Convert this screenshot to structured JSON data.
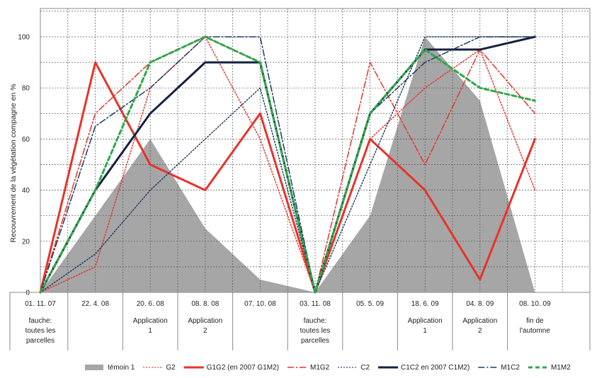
{
  "chart_data": {
    "type": "line",
    "title": "",
    "ylabel": "Recouvrement de la végétation compagne en %",
    "ylim": [
      0,
      100
    ],
    "yticks": [
      0,
      20,
      40,
      60,
      80,
      100
    ],
    "grid": true,
    "legend_position": "bottom",
    "categories": [
      "01. 11. 07",
      "22. 4. 08",
      "20. 6. 08",
      "08. 8. 08",
      "07. 10. 08",
      "03. 11. 08",
      "05. 5. 09",
      "18. 6. 09",
      "04. 8. 09",
      "08. 10. 09"
    ],
    "annotations": [
      [
        "fauche:",
        "toutes les",
        "parcelles"
      ],
      [],
      [
        "Application",
        "1"
      ],
      [
        "Application",
        "2"
      ],
      [],
      [
        "fauche:",
        "toutes les",
        "parcelles"
      ],
      [],
      [
        "Application",
        "1"
      ],
      [
        "Application",
        "2"
      ],
      [
        "fin de",
        "l'automne"
      ]
    ],
    "series": [
      {
        "name": "témoin 1",
        "kind": "area",
        "color": "#a6a6a6",
        "values": [
          0,
          30,
          60,
          25,
          5,
          0,
          30,
          100,
          75,
          0
        ]
      },
      {
        "name": "G2",
        "kind": "line",
        "dash": "dot",
        "color": "#e8332a",
        "width": 1.5,
        "values": [
          0,
          10,
          80,
          100,
          60,
          0,
          60,
          80,
          95,
          40
        ]
      },
      {
        "name": "G1G2 (en 2007 G1M2)",
        "kind": "line",
        "dash": "solid",
        "color": "#e8332a",
        "width": 3,
        "values": [
          0,
          90,
          50,
          40,
          70,
          0,
          60,
          40,
          5,
          60
        ]
      },
      {
        "name": "M1G2",
        "kind": "line",
        "dash": "dashdot",
        "color": "#e8332a",
        "width": 1.5,
        "values": [
          0,
          70,
          90,
          100,
          90,
          0,
          90,
          50,
          95,
          70
        ]
      },
      {
        "name": "C2",
        "kind": "line",
        "dash": "dot",
        "color": "#1f3b63",
        "width": 1.5,
        "values": [
          0,
          15,
          40,
          60,
          80,
          0,
          50,
          100,
          100,
          100
        ]
      },
      {
        "name": "C1C2 en 2007 C1M2)",
        "kind": "line",
        "dash": "solid",
        "color": "#16213f",
        "width": 3,
        "values": [
          0,
          40,
          70,
          90,
          90,
          0,
          70,
          95,
          95,
          100
        ]
      },
      {
        "name": "M1C2",
        "kind": "line",
        "dash": "dashdot",
        "color": "#1f3b63",
        "width": 1.5,
        "values": [
          0,
          65,
          80,
          100,
          100,
          0,
          70,
          90,
          100,
          100
        ]
      },
      {
        "name": "M1M2",
        "kind": "line",
        "dash": "dash",
        "color": "#2ea84a",
        "width": 3,
        "values": [
          0,
          40,
          90,
          100,
          90,
          0,
          70,
          95,
          80,
          75
        ]
      }
    ]
  }
}
